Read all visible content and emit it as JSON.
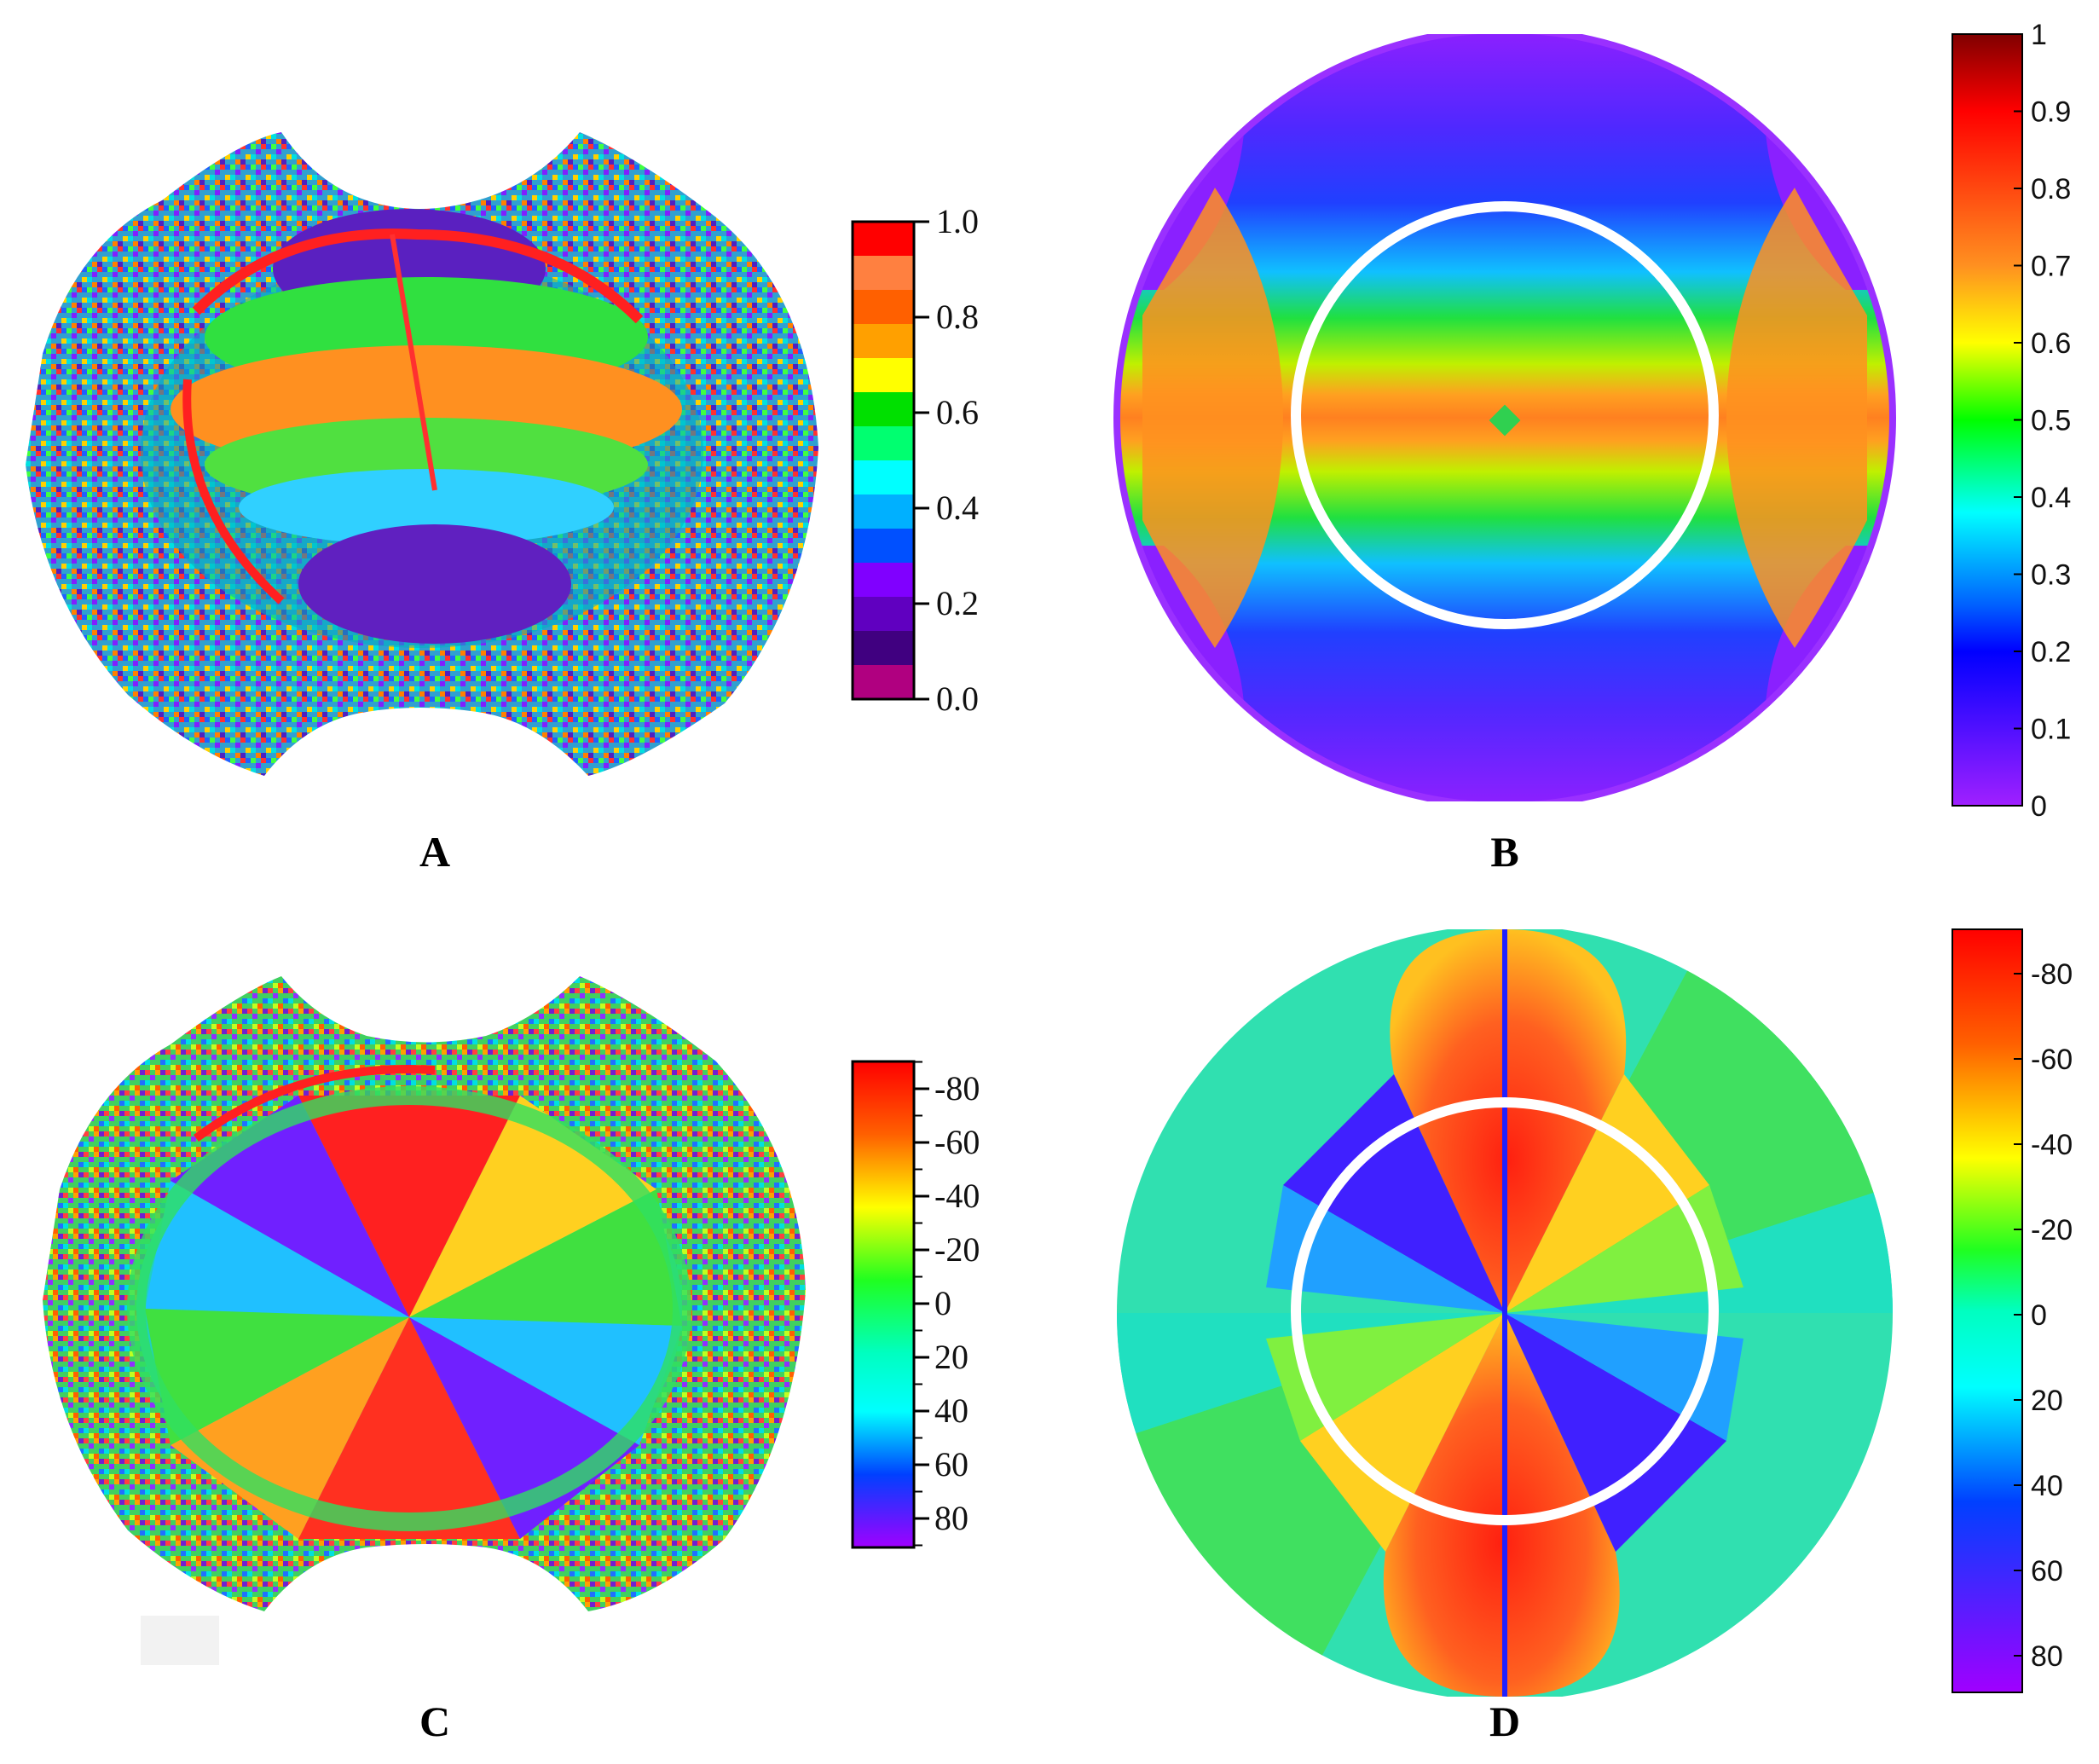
{
  "panels": {
    "A": {
      "label": "A",
      "colorbar": {
        "ticks": [
          "1.0",
          "0.8",
          "0.6",
          "0.4",
          "0.2",
          "0.0"
        ],
        "colors": [
          "#ff0000",
          "#ff8040",
          "#ff6000",
          "#ffa000",
          "#ffff00",
          "#00e000",
          "#00ff70",
          "#00ffff",
          "#00b0ff",
          "#0050ff",
          "#8000ff",
          "#6000c0",
          "#400080",
          "#b00080"
        ]
      }
    },
    "B": {
      "label": "B",
      "colorbar": {
        "ticks": [
          "1",
          "0.9",
          "0.8",
          "0.7",
          "0.6",
          "0.5",
          "0.4",
          "0.3",
          "0.2",
          "0.1",
          "0"
        ]
      }
    },
    "C": {
      "label": "C",
      "colorbar": {
        "ticks": [
          "-80",
          "-60",
          "-40",
          "-20",
          "0",
          "20",
          "40",
          "60",
          "80"
        ]
      }
    },
    "D": {
      "label": "D",
      "colorbar": {
        "ticks": [
          "-80",
          "-60",
          "-40",
          "-20",
          "0",
          "20",
          "40",
          "60",
          "80"
        ]
      }
    }
  }
}
